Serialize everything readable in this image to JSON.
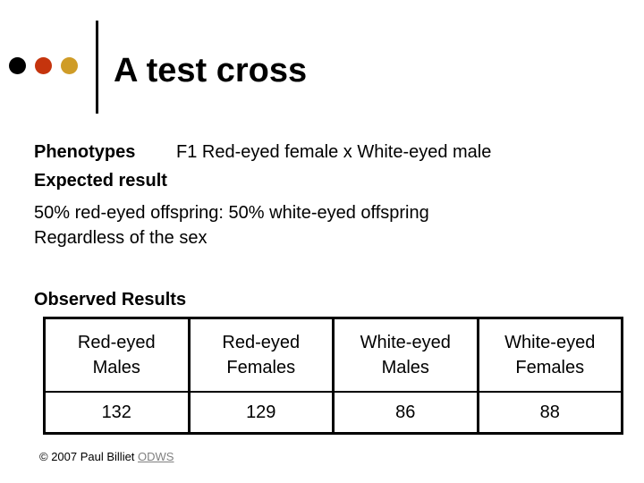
{
  "slide": {
    "title": "A test cross",
    "decor": {
      "bullet_colors": [
        "#000000",
        "#c5340d",
        "#cf9c27"
      ]
    },
    "phenotypes": {
      "label": "Phenotypes",
      "value": "F1 Red-eyed female x White-eyed male"
    },
    "expected": {
      "label": "Expected result",
      "line1": "50% red-eyed offspring: 50% white-eyed offspring",
      "line2": "Regardless of the sex"
    },
    "observed_heading": "Observed Results",
    "footer": {
      "copyright": "© 2007 Paul Billiet ",
      "link_label": "ODWS"
    }
  },
  "chart_data": {
    "type": "table",
    "title": "Observed Results",
    "columns": [
      "Red-eyed Males",
      "Red-eyed Females",
      "White-eyed Males",
      "White-eyed Females"
    ],
    "values": [
      132,
      129,
      86,
      88
    ]
  },
  "table": {
    "headers": [
      {
        "line1": "Red-eyed",
        "line2": "Males"
      },
      {
        "line1": "Red-eyed",
        "line2": "Females"
      },
      {
        "line1": "White-eyed",
        "line2": "Males"
      },
      {
        "line1": "White-eyed",
        "line2": "Females"
      }
    ],
    "values": [
      "132",
      "129",
      "86",
      "88"
    ]
  }
}
